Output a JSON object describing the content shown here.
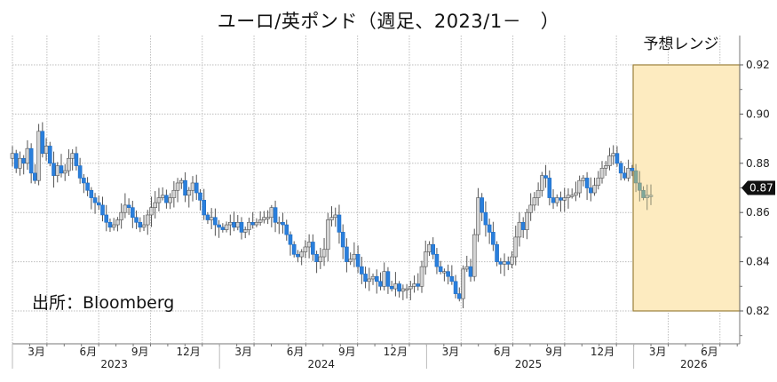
{
  "title": "ユーロ/英ポンド（週足、2023/1－　）",
  "source_note": "出所：Bloomberg",
  "forecast_label": "予想レンジ",
  "last_price_tag": "0.87",
  "colors": {
    "up_candle_fill": "#d4d4d4",
    "up_candle_edge": "#555555",
    "down_candle_fill": "#2a7fdc",
    "down_candle_edge": "#1e6cc4",
    "forecast_fill": "#fdebc0",
    "forecast_edge": "#9a7f3a",
    "grid": "#bdbdbd",
    "tag_bg": "#111111"
  },
  "chart_data": {
    "type": "candlestick",
    "title": "ユーロ/英ポンド（週足、2023/1－　）",
    "xlabel": "",
    "ylabel": "",
    "ylim": [
      0.815,
      0.925
    ],
    "y_ticks": [
      "0.82",
      "0.84",
      "0.86",
      "0.88",
      "0.90",
      "0.92"
    ],
    "x_ticks": [
      "3月",
      "6月",
      "9月",
      "12月",
      "3月",
      "6月",
      "9月",
      "12月",
      "3月",
      "6月",
      "9月",
      "12月",
      "3月",
      "6月"
    ],
    "x_years": [
      "2023",
      "2024",
      "2025",
      "2026"
    ],
    "grid": true,
    "last_value": 0.87,
    "forecast_range": {
      "label": "予想レンジ",
      "low": 0.82,
      "high": 0.92,
      "start": "2025/12",
      "end": "2026/6"
    },
    "annotation": "出所：Bloomberg",
    "weekly_close_approx": [
      0.884,
      0.878,
      0.882,
      0.88,
      0.886,
      0.876,
      0.873,
      0.893,
      0.884,
      0.887,
      0.88,
      0.875,
      0.879,
      0.876,
      0.877,
      0.882,
      0.884,
      0.879,
      0.874,
      0.872,
      0.869,
      0.866,
      0.864,
      0.863,
      0.859,
      0.856,
      0.854,
      0.855,
      0.857,
      0.86,
      0.863,
      0.862,
      0.858,
      0.856,
      0.854,
      0.855,
      0.859,
      0.862,
      0.864,
      0.866,
      0.867,
      0.864,
      0.866,
      0.869,
      0.872,
      0.873,
      0.867,
      0.869,
      0.872,
      0.868,
      0.865,
      0.859,
      0.857,
      0.858,
      0.855,
      0.854,
      0.853,
      0.855,
      0.856,
      0.854,
      0.856,
      0.852,
      0.853,
      0.856,
      0.855,
      0.856,
      0.857,
      0.858,
      0.858,
      0.862,
      0.856,
      0.856,
      0.855,
      0.851,
      0.847,
      0.843,
      0.842,
      0.844,
      0.846,
      0.848,
      0.843,
      0.84,
      0.842,
      0.845,
      0.857,
      0.858,
      0.859,
      0.852,
      0.846,
      0.84,
      0.841,
      0.843,
      0.838,
      0.835,
      0.832,
      0.833,
      0.834,
      0.832,
      0.83,
      0.836,
      0.83,
      0.829,
      0.831,
      0.828,
      0.829,
      0.829,
      0.83,
      0.831,
      0.83,
      0.838,
      0.844,
      0.847,
      0.843,
      0.838,
      0.836,
      0.836,
      0.834,
      0.832,
      0.827,
      0.825,
      0.837,
      0.838,
      0.834,
      0.851,
      0.866,
      0.86,
      0.855,
      0.852,
      0.847,
      0.84,
      0.839,
      0.84,
      0.839,
      0.842,
      0.85,
      0.856,
      0.853,
      0.86,
      0.863,
      0.866,
      0.869,
      0.875,
      0.874,
      0.866,
      0.864,
      0.866,
      0.865,
      0.866,
      0.867,
      0.867,
      0.868,
      0.873,
      0.874,
      0.87,
      0.868,
      0.871,
      0.874,
      0.878,
      0.879,
      0.883,
      0.884,
      0.88,
      0.876,
      0.874,
      0.878,
      0.877,
      0.872,
      0.869,
      0.866,
      0.867,
      0.867
    ]
  }
}
